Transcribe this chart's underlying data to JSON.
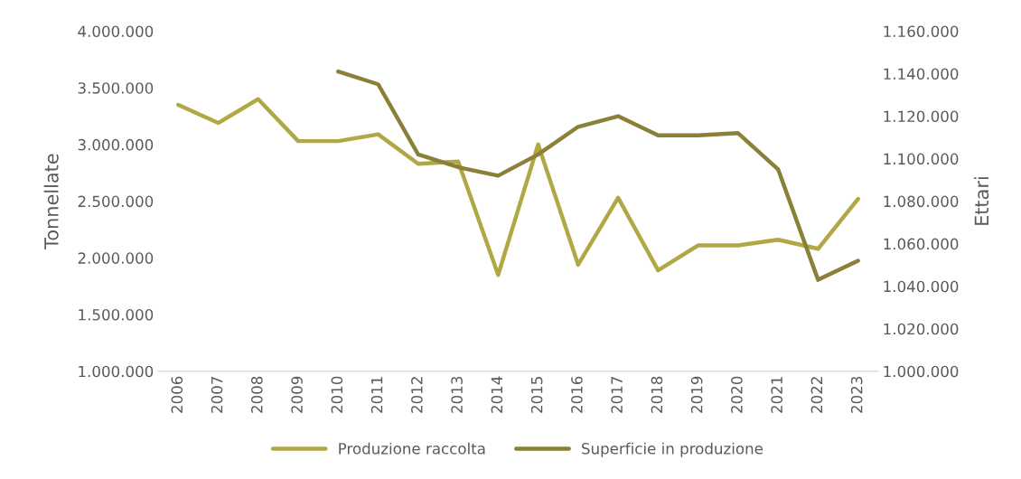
{
  "chart_data": {
    "type": "line",
    "ylabel": "Tonnellate",
    "y2label": "Ettari",
    "categories": [
      "2006",
      "2007",
      "2008",
      "2009",
      "2010",
      "2011",
      "2012",
      "2013",
      "2014",
      "2015",
      "2016",
      "2017",
      "2018",
      "2019",
      "2020",
      "2021",
      "2022",
      "2023"
    ],
    "series": [
      {
        "name": "Produzione raccolta",
        "color": "#b0a844",
        "values": [
          3350000,
          3190000,
          3400000,
          3030000,
          3030000,
          3090000,
          2830000,
          2850000,
          1850000,
          3000000,
          1940000,
          2530000,
          1890000,
          2110000,
          2110000,
          2160000,
          2080000,
          2520000
        ]
      },
      {
        "name": "Superficie in produzione",
        "color": "#8a8038",
        "axis": "y2",
        "values": [
          null,
          null,
          null,
          null,
          1141000,
          1135000,
          1102000,
          1096000,
          1092000,
          1102000,
          1115000,
          1120000,
          1111000,
          1111000,
          1112000,
          1095000,
          1043000,
          1052000
        ]
      }
    ],
    "ylim": [
      1000000,
      4000000
    ],
    "yticks": [
      {
        "value": 1000000,
        "label": "1.000.000"
      },
      {
        "value": 1500000,
        "label": "1.500.000"
      },
      {
        "value": 2000000,
        "label": "2.000.000"
      },
      {
        "value": 2500000,
        "label": "2.500.000"
      },
      {
        "value": 3000000,
        "label": "3.000.000"
      },
      {
        "value": 3500000,
        "label": "3.500.000"
      },
      {
        "value": 4000000,
        "label": "4.000.000"
      }
    ],
    "y2lim": [
      1000000,
      1160000
    ],
    "y2ticks": [
      {
        "value": 1000000,
        "label": "1.000.000"
      },
      {
        "value": 1020000,
        "label": "1.020.000"
      },
      {
        "value": 1040000,
        "label": "1.040.000"
      },
      {
        "value": 1060000,
        "label": "1.060.000"
      },
      {
        "value": 1080000,
        "label": "1.080.000"
      },
      {
        "value": 1100000,
        "label": "1.100.000"
      },
      {
        "value": 1120000,
        "label": "1.120.000"
      },
      {
        "value": 1140000,
        "label": "1.140.000"
      },
      {
        "value": 1160000,
        "label": "1.160.000"
      }
    ],
    "grid": false,
    "legend": "bottom",
    "marker": "none",
    "line_style": "solid"
  }
}
